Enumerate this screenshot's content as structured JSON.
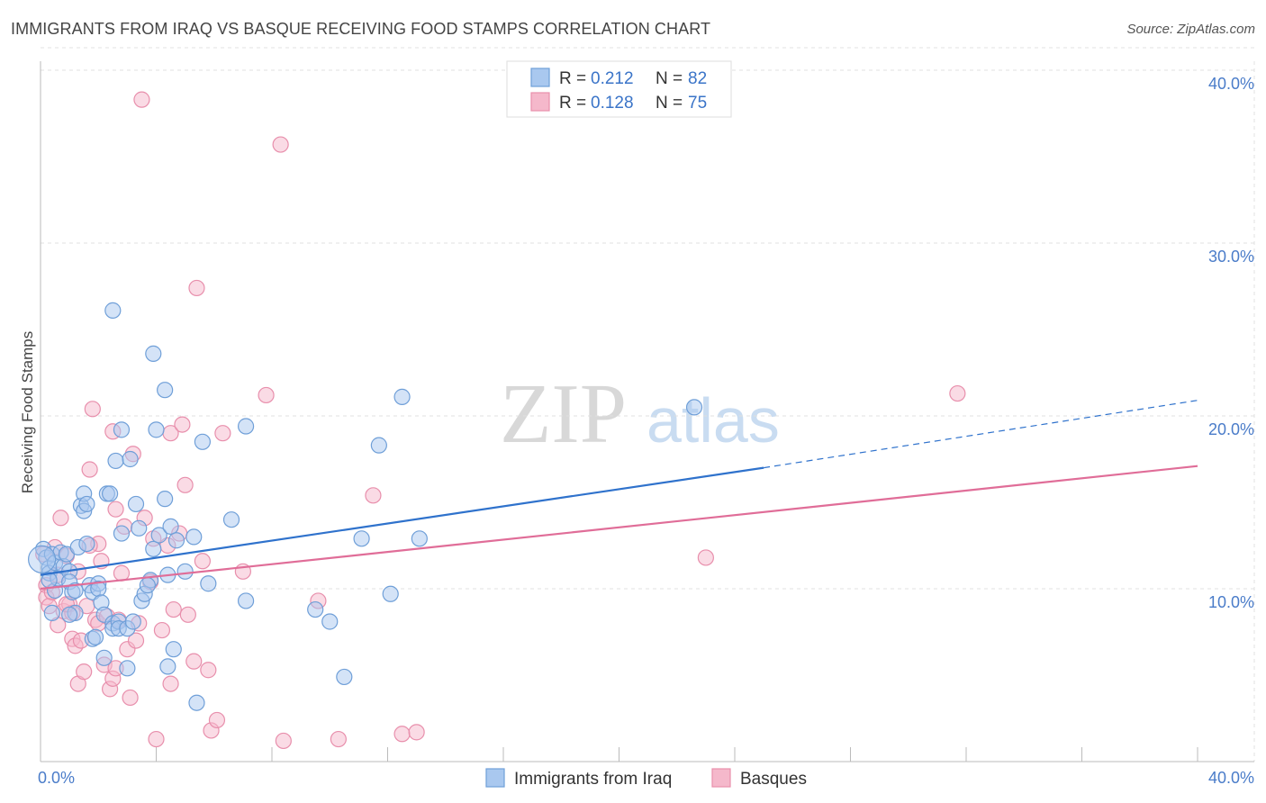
{
  "header": {
    "title": "IMMIGRANTS FROM IRAQ VS BASQUE RECEIVING FOOD STAMPS CORRELATION CHART",
    "source": "Source: ZipAtlas.com"
  },
  "watermark": {
    "zip": "ZIP",
    "atlas": "atlas"
  },
  "colors": {
    "blue_fill": "#a9c8ef",
    "blue_stroke": "#6f9fd8",
    "blue_line": "#2f72cc",
    "pink_fill": "#f5b8cb",
    "pink_stroke": "#e88fac",
    "pink_line": "#e06d98",
    "tick_text": "#4a7cc9"
  },
  "legend": {
    "series": [
      {
        "r_label": "R = ",
        "r_value": "0.212",
        "n_label": "N = ",
        "n_value": "82"
      },
      {
        "r_label": "R = ",
        "r_value": "0.128",
        "n_label": "N = ",
        "n_value": "75"
      }
    ]
  },
  "chart_data": {
    "type": "scatter",
    "title": "IMMIGRANTS FROM IRAQ VS BASQUE RECEIVING FOOD STAMPS CORRELATION CHART",
    "xlabel": "",
    "ylabel": "Receiving Food Stamps",
    "xlim": [
      0,
      40
    ],
    "ylim": [
      0,
      40
    ],
    "x_tick_labels": [
      "0.0%",
      "40.0%"
    ],
    "y_ticks": [
      10,
      20,
      30,
      40
    ],
    "y_tick_labels": [
      "10.0%",
      "20.0%",
      "30.0%",
      "40.0%"
    ],
    "grid": true,
    "legend_position": "top-center",
    "series": [
      {
        "name": "Immigrants from Iraq",
        "r": 0.212,
        "n": 82,
        "trend": {
          "x0": 0,
          "y0": 10.8,
          "x1": 25,
          "y1": 17.0,
          "dashed_to_x": 40,
          "dashed_to_y": 20.9
        },
        "points": [
          [
            0.1,
            12.3
          ],
          [
            0.2,
            11.8
          ],
          [
            0.3,
            11.2
          ],
          [
            0.3,
            10.9
          ],
          [
            0.4,
            12.0
          ],
          [
            0.5,
            11.5
          ],
          [
            0.5,
            9.9
          ],
          [
            0.4,
            8.6
          ],
          [
            0.6,
            10.6
          ],
          [
            0.7,
            12.1
          ],
          [
            0.8,
            11.3
          ],
          [
            0.9,
            12.0
          ],
          [
            1.0,
            11.0
          ],
          [
            1.0,
            10.4
          ],
          [
            1.1,
            9.8
          ],
          [
            1.2,
            9.9
          ],
          [
            1.2,
            8.6
          ],
          [
            1.3,
            12.4
          ],
          [
            1.4,
            14.8
          ],
          [
            1.5,
            15.5
          ],
          [
            1.5,
            14.5
          ],
          [
            1.6,
            14.9
          ],
          [
            1.7,
            10.2
          ],
          [
            1.8,
            9.8
          ],
          [
            1.8,
            7.1
          ],
          [
            1.9,
            7.2
          ],
          [
            2.0,
            10.3
          ],
          [
            2.0,
            10.0
          ],
          [
            2.1,
            9.2
          ],
          [
            2.2,
            8.5
          ],
          [
            2.2,
            6.0
          ],
          [
            2.3,
            15.5
          ],
          [
            2.4,
            15.5
          ],
          [
            2.5,
            8.0
          ],
          [
            2.5,
            7.7
          ],
          [
            2.6,
            17.4
          ],
          [
            2.7,
            8.1
          ],
          [
            2.7,
            7.7
          ],
          [
            2.8,
            19.2
          ],
          [
            2.8,
            13.2
          ],
          [
            3.0,
            5.4
          ],
          [
            3.0,
            7.7
          ],
          [
            3.1,
            17.5
          ],
          [
            3.2,
            8.1
          ],
          [
            3.3,
            14.9
          ],
          [
            3.4,
            13.5
          ],
          [
            3.5,
            9.3
          ],
          [
            3.6,
            9.7
          ],
          [
            3.8,
            10.5
          ],
          [
            3.9,
            12.3
          ],
          [
            3.9,
            23.6
          ],
          [
            4.0,
            19.2
          ],
          [
            4.1,
            13.1
          ],
          [
            4.3,
            21.5
          ],
          [
            4.3,
            15.2
          ],
          [
            4.4,
            10.8
          ],
          [
            4.4,
            5.5
          ],
          [
            4.5,
            13.6
          ],
          [
            4.6,
            6.5
          ],
          [
            4.7,
            12.8
          ],
          [
            5.0,
            11.0
          ],
          [
            5.3,
            13.0
          ],
          [
            5.4,
            3.4
          ],
          [
            5.6,
            18.5
          ],
          [
            5.8,
            10.3
          ],
          [
            6.6,
            14.0
          ],
          [
            7.1,
            19.4
          ],
          [
            7.1,
            9.3
          ],
          [
            9.5,
            8.8
          ],
          [
            10.0,
            8.1
          ],
          [
            11.1,
            12.9
          ],
          [
            10.5,
            4.9
          ],
          [
            11.7,
            18.3
          ],
          [
            12.1,
            9.7
          ],
          [
            12.5,
            21.1
          ],
          [
            13.1,
            12.9
          ],
          [
            22.6,
            20.5
          ],
          [
            2.5,
            26.1
          ],
          [
            0.3,
            10.5
          ],
          [
            1.0,
            8.5
          ],
          [
            1.6,
            12.6
          ],
          [
            3.7,
            10.2
          ]
        ]
      },
      {
        "name": "Basques",
        "r": 0.128,
        "n": 75,
        "trend": {
          "x0": 0,
          "y0": 10.0,
          "x1": 40,
          "y1": 17.1
        },
        "points": [
          [
            0.1,
            12.0
          ],
          [
            0.2,
            10.2
          ],
          [
            0.2,
            9.5
          ],
          [
            0.3,
            9.0
          ],
          [
            0.4,
            9.8
          ],
          [
            0.5,
            12.4
          ],
          [
            0.6,
            10.8
          ],
          [
            0.7,
            14.1
          ],
          [
            0.8,
            8.7
          ],
          [
            0.9,
            11.9
          ],
          [
            1.0,
            9.1
          ],
          [
            1.1,
            8.6
          ],
          [
            1.1,
            7.1
          ],
          [
            1.2,
            6.7
          ],
          [
            1.3,
            4.5
          ],
          [
            1.4,
            7.0
          ],
          [
            1.5,
            5.2
          ],
          [
            1.6,
            9.0
          ],
          [
            1.7,
            16.9
          ],
          [
            1.8,
            20.4
          ],
          [
            1.9,
            8.2
          ],
          [
            2.0,
            8.0
          ],
          [
            2.0,
            12.6
          ],
          [
            2.1,
            11.6
          ],
          [
            2.2,
            5.6
          ],
          [
            2.3,
            8.4
          ],
          [
            2.4,
            4.2
          ],
          [
            2.5,
            4.8
          ],
          [
            2.6,
            14.6
          ],
          [
            2.7,
            8.2
          ],
          [
            2.8,
            10.9
          ],
          [
            2.9,
            13.6
          ],
          [
            3.0,
            6.5
          ],
          [
            3.1,
            3.7
          ],
          [
            3.2,
            17.8
          ],
          [
            3.3,
            7.0
          ],
          [
            3.4,
            8.0
          ],
          [
            3.6,
            14.1
          ],
          [
            3.8,
            10.4
          ],
          [
            4.0,
            1.3
          ],
          [
            4.2,
            7.6
          ],
          [
            4.4,
            12.5
          ],
          [
            4.5,
            4.5
          ],
          [
            4.5,
            19.0
          ],
          [
            4.6,
            8.8
          ],
          [
            4.8,
            13.2
          ],
          [
            4.9,
            19.5
          ],
          [
            5.0,
            16.0
          ],
          [
            5.1,
            8.5
          ],
          [
            5.3,
            5.8
          ],
          [
            5.4,
            27.4
          ],
          [
            5.6,
            11.6
          ],
          [
            5.8,
            5.3
          ],
          [
            5.9,
            1.8
          ],
          [
            6.1,
            2.4
          ],
          [
            6.3,
            19.0
          ],
          [
            7.0,
            11.0
          ],
          [
            7.8,
            21.2
          ],
          [
            8.3,
            35.7
          ],
          [
            8.4,
            1.2
          ],
          [
            9.6,
            9.3
          ],
          [
            10.3,
            1.3
          ],
          [
            11.5,
            15.4
          ],
          [
            12.5,
            1.6
          ],
          [
            13.0,
            1.7
          ],
          [
            3.5,
            38.3
          ],
          [
            23.0,
            11.8
          ],
          [
            31.7,
            21.3
          ],
          [
            1.3,
            11.0
          ],
          [
            0.6,
            7.9
          ],
          [
            2.5,
            19.1
          ],
          [
            3.9,
            12.9
          ],
          [
            1.7,
            12.5
          ],
          [
            0.9,
            9.1
          ],
          [
            2.6,
            5.4
          ]
        ]
      }
    ]
  },
  "bottom_legend": {
    "items": [
      {
        "label": "Immigrants from Iraq"
      },
      {
        "label": "Basques"
      }
    ]
  }
}
